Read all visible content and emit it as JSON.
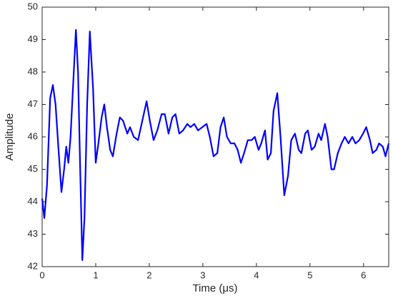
{
  "chart_data": {
    "type": "line",
    "xlabel": "Time (μs)",
    "ylabel": "Amplitude",
    "x": [
      0,
      0.04,
      0.09,
      0.15,
      0.2,
      0.25,
      0.31,
      0.36,
      0.41,
      0.45,
      0.49,
      0.53,
      0.59,
      0.63,
      0.67,
      0.71,
      0.75,
      0.79,
      0.84,
      0.89,
      0.95,
      1.0,
      1.05,
      1.11,
      1.16,
      1.21,
      1.27,
      1.32,
      1.39,
      1.45,
      1.51,
      1.59,
      1.64,
      1.71,
      1.79,
      1.87,
      1.95,
      2.01,
      2.08,
      2.15,
      2.23,
      2.29,
      2.36,
      2.43,
      2.49,
      2.56,
      2.63,
      2.71,
      2.77,
      2.84,
      2.91,
      2.99,
      3.07,
      3.13,
      3.2,
      3.27,
      3.33,
      3.39,
      3.45,
      3.52,
      3.59,
      3.65,
      3.71,
      3.77,
      3.84,
      3.91,
      3.97,
      4.04,
      4.09,
      4.16,
      4.21,
      4.27,
      4.32,
      4.39,
      4.45,
      4.52,
      4.59,
      4.65,
      4.72,
      4.79,
      4.84,
      4.91,
      4.96,
      5.03,
      5.09,
      5.16,
      5.21,
      5.28,
      5.33,
      5.4,
      5.45,
      5.52,
      5.59,
      5.65,
      5.72,
      5.79,
      5.85,
      5.92,
      5.99,
      6.05,
      6.12,
      6.17,
      6.24,
      6.29,
      6.36,
      6.41,
      6.47
    ],
    "series": [
      {
        "color": "#0000ff",
        "values": [
          44.1,
          43.5,
          44.5,
          47.2,
          47.6,
          47.0,
          45.5,
          44.3,
          45.0,
          45.7,
          45.2,
          46.0,
          48.0,
          49.3,
          48.0,
          45.0,
          42.2,
          43.5,
          47.0,
          49.25,
          47.5,
          45.2,
          45.8,
          46.6,
          47.0,
          46.3,
          45.6,
          45.4,
          46.1,
          46.6,
          46.5,
          46.1,
          46.3,
          46.0,
          45.9,
          46.5,
          47.1,
          46.5,
          45.9,
          46.2,
          46.7,
          46.7,
          46.1,
          46.6,
          46.7,
          46.1,
          46.2,
          46.4,
          46.3,
          46.4,
          46.2,
          46.3,
          46.4,
          46.0,
          45.4,
          45.5,
          46.3,
          46.6,
          46.0,
          45.8,
          45.8,
          45.6,
          45.2,
          45.5,
          45.9,
          45.9,
          46.0,
          45.6,
          45.8,
          46.2,
          45.3,
          45.5,
          46.8,
          47.35,
          46.0,
          44.2,
          44.8,
          45.9,
          46.1,
          45.6,
          45.5,
          46.1,
          46.2,
          45.6,
          45.7,
          46.1,
          45.9,
          46.4,
          46.0,
          45.0,
          45.0,
          45.5,
          45.8,
          46.0,
          45.8,
          46.0,
          45.8,
          45.9,
          46.1,
          46.3,
          45.9,
          45.5,
          45.6,
          45.8,
          45.7,
          45.4,
          45.8
        ]
      }
    ],
    "xlim": [
      0,
      6.47
    ],
    "ylim": [
      42,
      50
    ],
    "xticks": [
      0,
      1,
      2,
      3,
      4,
      5,
      6
    ],
    "yticks": [
      42,
      43,
      44,
      45,
      46,
      47,
      48,
      49,
      50
    ]
  }
}
